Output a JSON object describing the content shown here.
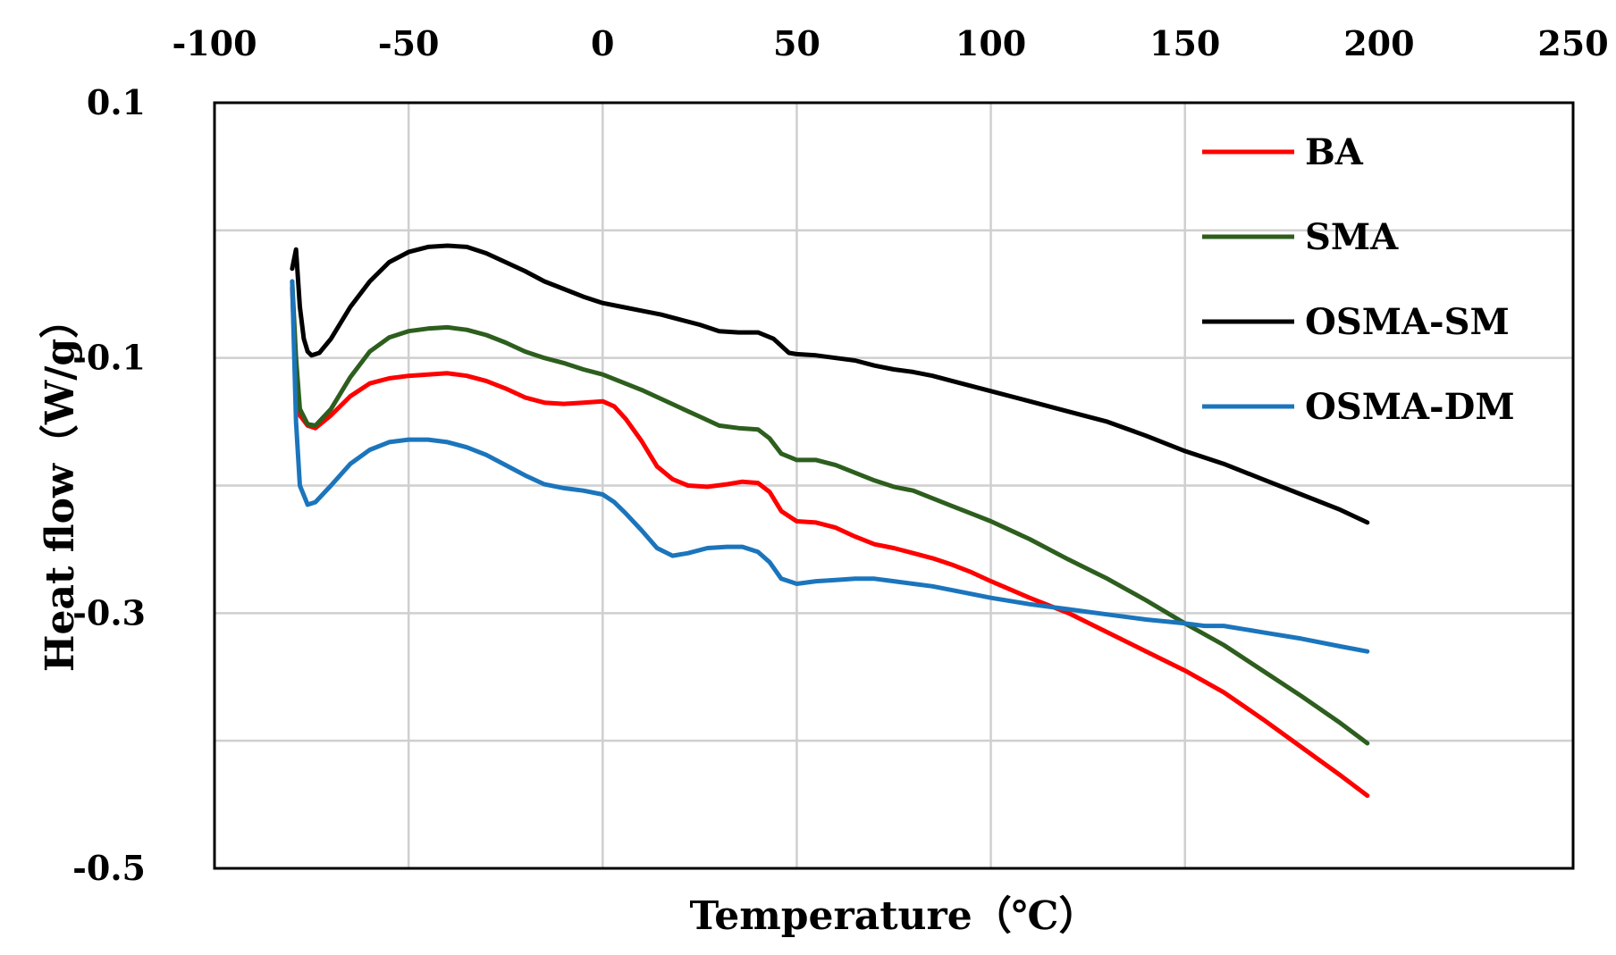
{
  "chart_data": {
    "type": "line",
    "xlabel": "Temperature（℃）",
    "ylabel": "Heat flow（W/g）",
    "xlim": [
      -100,
      250
    ],
    "ylim": [
      -0.5,
      0.1
    ],
    "x_ticks": [
      -100,
      -50,
      0,
      50,
      100,
      150,
      200,
      250
    ],
    "y_ticks": [
      0.1,
      -0.1,
      -0.3,
      -0.5
    ],
    "y_gridlines": [
      0.0,
      -0.1,
      -0.2,
      -0.3,
      -0.4
    ],
    "x_gridlines": [
      -50,
      0,
      50,
      100,
      150
    ],
    "x_axis_position": "top",
    "grid": true,
    "legend_position": "top-right",
    "series": [
      {
        "name": "BA",
        "color": "#ff0000",
        "x": [
          -80,
          -79,
          -78,
          -76,
          -74,
          -70,
          -65,
          -60,
          -55,
          -50,
          -45,
          -40,
          -35,
          -30,
          -25,
          -20,
          -15,
          -10,
          -5,
          0,
          3,
          6,
          10,
          14,
          18,
          22,
          27,
          32,
          36,
          40,
          43,
          46,
          50,
          55,
          60,
          65,
          70,
          75,
          80,
          85,
          90,
          95,
          100,
          110,
          120,
          130,
          140,
          150,
          160,
          170,
          180,
          190,
          197
        ],
        "y": [
          -0.045,
          -0.12,
          -0.145,
          -0.153,
          -0.155,
          -0.145,
          -0.13,
          -0.12,
          -0.116,
          -0.114,
          -0.113,
          -0.112,
          -0.114,
          -0.118,
          -0.124,
          -0.131,
          -0.135,
          -0.136,
          -0.135,
          -0.134,
          -0.138,
          -0.148,
          -0.165,
          -0.185,
          -0.195,
          -0.2,
          -0.201,
          -0.199,
          -0.197,
          -0.198,
          -0.205,
          -0.22,
          -0.228,
          -0.229,
          -0.233,
          -0.24,
          -0.246,
          -0.249,
          -0.253,
          -0.257,
          -0.262,
          -0.268,
          -0.275,
          -0.288,
          -0.3,
          -0.315,
          -0.33,
          -0.345,
          -0.362,
          -0.383,
          -0.405,
          -0.427,
          -0.443
        ]
      },
      {
        "name": "SMA",
        "color": "#2d5e1e",
        "x": [
          -80,
          -79,
          -78,
          -76,
          -74,
          -70,
          -65,
          -60,
          -55,
          -50,
          -45,
          -40,
          -35,
          -30,
          -25,
          -20,
          -15,
          -10,
          -5,
          0,
          5,
          10,
          15,
          20,
          25,
          30,
          35,
          40,
          43,
          46,
          50,
          55,
          60,
          65,
          70,
          75,
          80,
          85,
          90,
          95,
          100,
          110,
          120,
          130,
          140,
          150,
          160,
          170,
          180,
          190,
          197
        ],
        "y": [
          -0.04,
          -0.1,
          -0.14,
          -0.152,
          -0.153,
          -0.14,
          -0.115,
          -0.095,
          -0.084,
          -0.079,
          -0.077,
          -0.076,
          -0.078,
          -0.082,
          -0.088,
          -0.095,
          -0.1,
          -0.104,
          -0.109,
          -0.113,
          -0.119,
          -0.125,
          -0.132,
          -0.139,
          -0.146,
          -0.153,
          -0.155,
          -0.156,
          -0.163,
          -0.175,
          -0.18,
          -0.18,
          -0.184,
          -0.19,
          -0.196,
          -0.201,
          -0.204,
          -0.21,
          -0.216,
          -0.222,
          -0.228,
          -0.242,
          -0.258,
          -0.273,
          -0.29,
          -0.308,
          -0.325,
          -0.345,
          -0.365,
          -0.386,
          -0.402
        ]
      },
      {
        "name": "OSMA-SM",
        "color": "#000000",
        "x": [
          -80,
          -79,
          -78,
          -77,
          -76,
          -75,
          -73,
          -70,
          -65,
          -60,
          -55,
          -50,
          -45,
          -40,
          -35,
          -30,
          -25,
          -20,
          -15,
          -10,
          -5,
          0,
          5,
          10,
          15,
          20,
          25,
          30,
          35,
          40,
          44,
          48,
          50,
          55,
          60,
          65,
          70,
          75,
          80,
          85,
          90,
          100,
          110,
          120,
          130,
          140,
          150,
          160,
          170,
          180,
          190,
          197
        ],
        "y": [
          -0.03,
          -0.015,
          -0.06,
          -0.085,
          -0.095,
          -0.098,
          -0.096,
          -0.085,
          -0.06,
          -0.04,
          -0.025,
          -0.017,
          -0.013,
          -0.012,
          -0.013,
          -0.018,
          -0.025,
          -0.032,
          -0.04,
          -0.046,
          -0.052,
          -0.057,
          -0.06,
          -0.063,
          -0.066,
          -0.07,
          -0.074,
          -0.079,
          -0.08,
          -0.08,
          -0.085,
          -0.096,
          -0.097,
          -0.098,
          -0.1,
          -0.102,
          -0.106,
          -0.109,
          -0.111,
          -0.114,
          -0.118,
          -0.126,
          -0.134,
          -0.142,
          -0.15,
          -0.161,
          -0.173,
          -0.183,
          -0.195,
          -0.207,
          -0.219,
          -0.229
        ]
      },
      {
        "name": "OSMA-DM",
        "color": "#1b75bc",
        "x": [
          -80,
          -79,
          -78,
          -76,
          -74,
          -70,
          -65,
          -60,
          -55,
          -50,
          -45,
          -40,
          -35,
          -30,
          -25,
          -20,
          -15,
          -10,
          -5,
          0,
          3,
          6,
          10,
          14,
          18,
          22,
          27,
          32,
          36,
          40,
          43,
          46,
          50,
          55,
          60,
          65,
          70,
          75,
          80,
          85,
          90,
          100,
          110,
          120,
          130,
          140,
          150,
          155,
          160,
          170,
          180,
          190,
          197
        ],
        "y": [
          -0.04,
          -0.15,
          -0.2,
          -0.215,
          -0.213,
          -0.2,
          -0.183,
          -0.172,
          -0.166,
          -0.164,
          -0.164,
          -0.166,
          -0.17,
          -0.176,
          -0.184,
          -0.192,
          -0.199,
          -0.202,
          -0.204,
          -0.207,
          -0.213,
          -0.222,
          -0.235,
          -0.249,
          -0.255,
          -0.253,
          -0.249,
          -0.248,
          -0.248,
          -0.252,
          -0.26,
          -0.273,
          -0.277,
          -0.275,
          -0.274,
          -0.273,
          -0.273,
          -0.275,
          -0.277,
          -0.279,
          -0.282,
          -0.288,
          -0.293,
          -0.297,
          -0.301,
          -0.305,
          -0.308,
          -0.31,
          -0.31,
          -0.315,
          -0.32,
          -0.326,
          -0.33
        ]
      }
    ]
  }
}
